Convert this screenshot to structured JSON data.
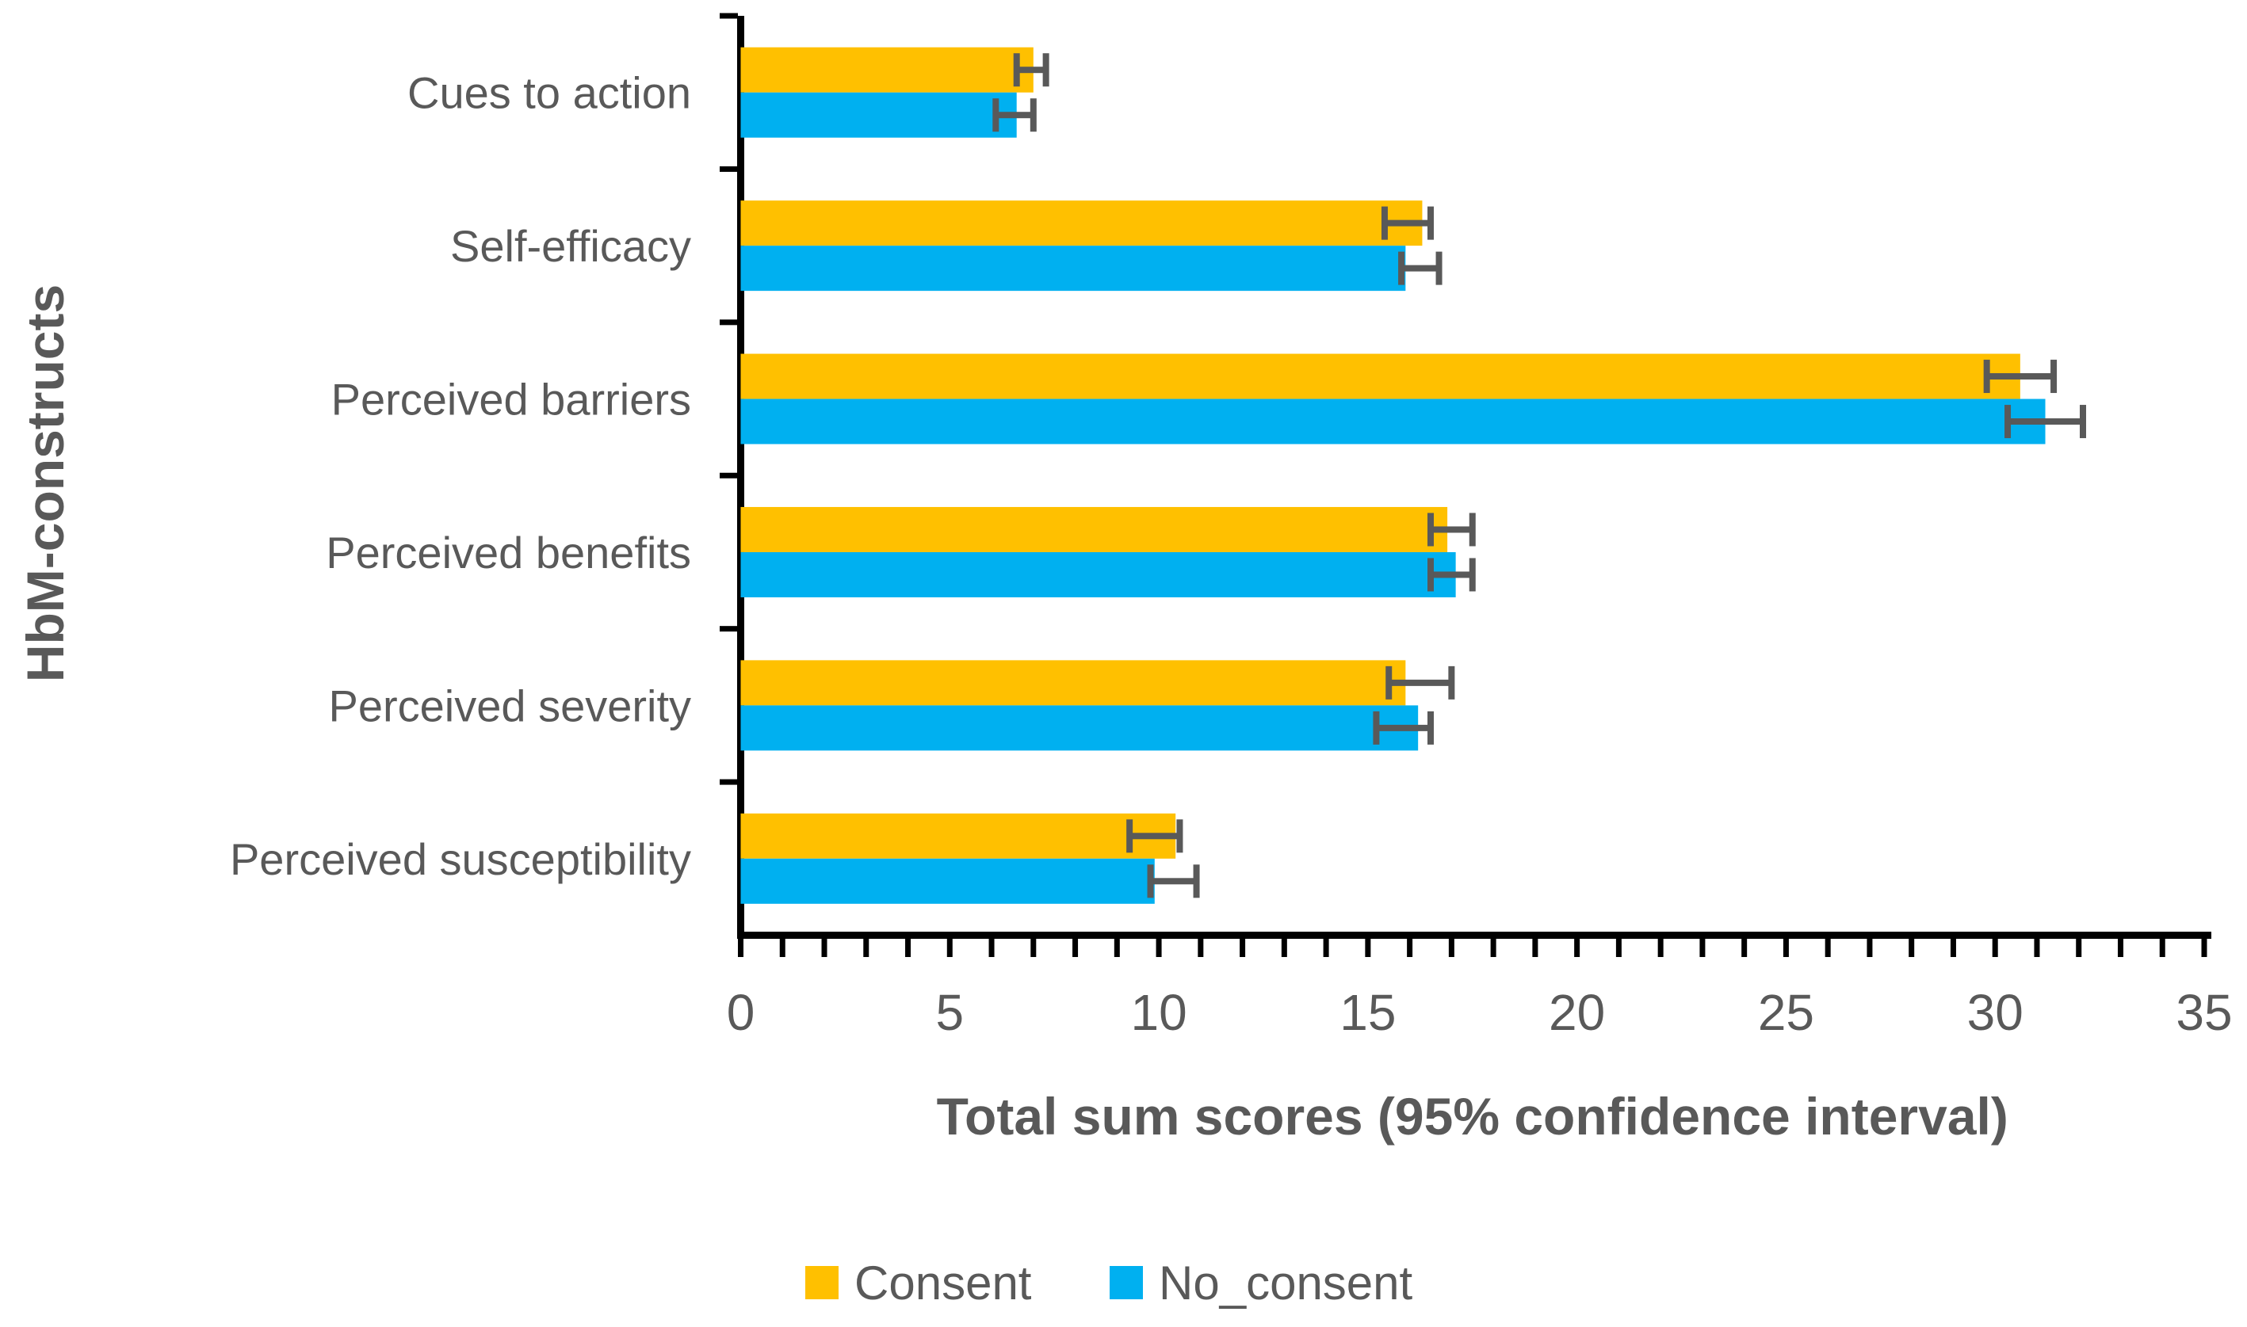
{
  "chart_data": {
    "type": "bar",
    "orientation": "horizontal",
    "xlabel": "Total sum scores (95% confidence interval)",
    "ylabel": "HbM-constructs",
    "categories_top_to_bottom": [
      "Cues to action",
      "Self-efficacy",
      "Perceived barriers",
      "Perceived benefits",
      "Perceived severity",
      "Perceived susceptibility"
    ],
    "series": [
      {
        "name": "Consent",
        "color": "#FFC000",
        "values": [
          7.0,
          16.3,
          30.6,
          16.9,
          15.9,
          10.4
        ],
        "ci_low": [
          6.6,
          15.4,
          29.8,
          16.5,
          15.5,
          9.3
        ],
        "ci_high": [
          7.3,
          16.5,
          31.4,
          17.5,
          17.0,
          10.5
        ]
      },
      {
        "name": "No_consent",
        "color": "#00B0F0",
        "values": [
          6.6,
          15.9,
          31.2,
          17.1,
          16.2,
          9.9
        ],
        "ci_low": [
          6.1,
          15.8,
          30.3,
          16.5,
          15.2,
          9.8
        ],
        "ci_high": [
          7.0,
          16.7,
          32.1,
          17.5,
          16.5,
          10.9
        ]
      }
    ],
    "x_axis": {
      "min": 0,
      "max": 35,
      "major_tick_step": 5,
      "minor_tick_step": 1,
      "tick_labels": [
        "0",
        "5",
        "10",
        "15",
        "20",
        "25",
        "30",
        "35"
      ]
    },
    "legend": {
      "position": "bottom",
      "entries": [
        {
          "label": "Consent",
          "color": "#FFC000"
        },
        {
          "label": "No_consent",
          "color": "#00B0F0"
        }
      ]
    },
    "grid": false,
    "colors": {
      "error_bar": "#595959",
      "text": "#595959",
      "axis": "#000000",
      "background": "#FFFFFF"
    }
  }
}
